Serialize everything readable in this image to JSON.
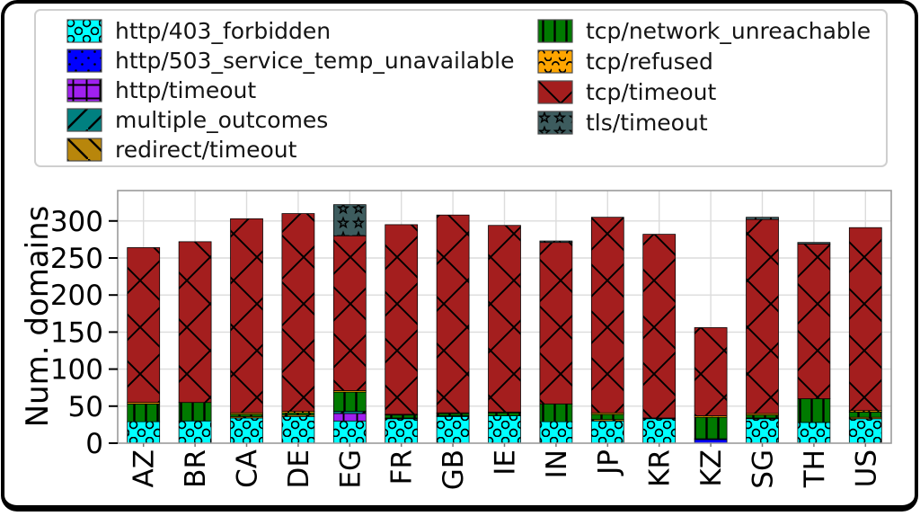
{
  "figure": {
    "type": "stacked-bar-figure",
    "background": "#ffffff",
    "frame_color": "#000000"
  },
  "chart_data": {
    "type": "bar",
    "stacked": true,
    "title": "",
    "xlabel": "",
    "ylabel": "Num. domains",
    "categories": [
      "AZ",
      "BR",
      "CA",
      "DE",
      "EG",
      "FR",
      "GB",
      "IE",
      "IN",
      "JP",
      "KR",
      "KZ",
      "SG",
      "TH",
      "US"
    ],
    "series": [
      {
        "name": "http/403_forbidden",
        "color": "#00FFFF",
        "hatch": "circle",
        "values": [
          29,
          30,
          34,
          36,
          30,
          33,
          36,
          37,
          29,
          30,
          33,
          0,
          33,
          28,
          33
        ]
      },
      {
        "name": "http/503_service_temp_unavailable",
        "color": "#0000FF",
        "hatch": "dot",
        "values": [
          0,
          0,
          0,
          0,
          0,
          0,
          0,
          0,
          0,
          0,
          0,
          5,
          0,
          0,
          0
        ]
      },
      {
        "name": "http/timeout",
        "color": "#A020F0",
        "hatch": "plus",
        "values": [
          0,
          0,
          0,
          0,
          10,
          0,
          0,
          0,
          0,
          0,
          0,
          0,
          0,
          0,
          0
        ]
      },
      {
        "name": "multiple_outcomes",
        "color": "#008080",
        "hatch": "slash",
        "values": [
          0,
          0,
          0,
          0,
          3,
          0,
          0,
          0,
          0,
          0,
          0,
          0,
          0,
          0,
          0
        ]
      },
      {
        "name": "redirect/timeout",
        "color": "#B8860B",
        "hatch": "backslash",
        "values": [
          0,
          0,
          2,
          2,
          0,
          1,
          1,
          0,
          0,
          2,
          0,
          1,
          1,
          0,
          2
        ]
      },
      {
        "name": "tcp/network_unreachable",
        "color": "#007A00",
        "hatch": "vline",
        "values": [
          24,
          25,
          3,
          3,
          26,
          4,
          3,
          4,
          24,
          7,
          0,
          29,
          4,
          32,
          7
        ]
      },
      {
        "name": "tcp/refused",
        "color": "#FFA500",
        "hatch": "arc",
        "values": [
          2,
          0,
          2,
          2,
          2,
          1,
          1,
          1,
          0,
          2,
          1,
          2,
          2,
          0,
          2
        ]
      },
      {
        "name": "tcp/timeout",
        "color": "#A41E1E",
        "hatch": "cross",
        "values": [
          209,
          217,
          262,
          267,
          209,
          256,
          267,
          252,
          218,
          264,
          248,
          119,
          262,
          209,
          247
        ]
      },
      {
        "name": "tls/timeout",
        "color": "#3D5C5E",
        "hatch": "star",
        "values": [
          0,
          0,
          0,
          0,
          42,
          0,
          0,
          0,
          2,
          0,
          0,
          0,
          3,
          2,
          0
        ]
      }
    ],
    "totals": [
      264,
      272,
      303,
      310,
      322,
      295,
      308,
      294,
      273,
      305,
      282,
      156,
      305,
      271,
      291
    ],
    "yticks": [
      0,
      50,
      100,
      150,
      200,
      250,
      300
    ],
    "ylim": [
      0,
      341
    ],
    "grid": true,
    "grid_color": "#dcdcdc",
    "hatch_color": "#000000",
    "spine_color": "#9b9b9b",
    "legend_position": "top",
    "legend_columns": 2,
    "legend_column_split": 5
  }
}
